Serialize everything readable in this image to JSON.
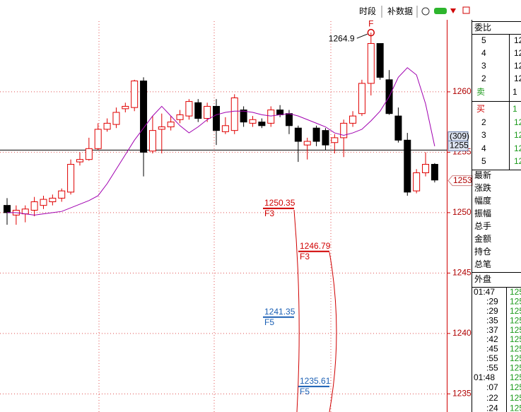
{
  "toolbar": {
    "period": "时段",
    "fill_data": "补数据"
  },
  "chart_data": {
    "type": "candlestick",
    "open": [
      1250.6,
      1249.8,
      1249.9,
      1250.2,
      1250.6,
      1250.9,
      1251.2,
      1251.7,
      1254.2,
      1254.4,
      1255.3,
      1256.9,
      1257.3,
      1258.6,
      1258.7,
      1260.9,
      1255.1,
      1256.9,
      1257.1,
      1257.7,
      1258.0,
      1259.1,
      1257.8,
      1258.8,
      1256.7,
      1256.8,
      1258.5,
      1257.4,
      1257.5,
      1257.4,
      1258.5,
      1258.2,
      1257.0,
      1255.6,
      1257.0,
      1256.8,
      1255.8,
      1256.2,
      1257.4,
      1258.2,
      1260.7,
      1264.0,
      1261.0,
      1258.0,
      1256.0,
      1251.8,
      1253.3,
      1254.0
    ],
    "high": [
      1251.2,
      1250.6,
      1250.6,
      1251.3,
      1251.4,
      1251.5,
      1252.0,
      1254.4,
      1255.0,
      1256.2,
      1257.4,
      1257.8,
      1258.7,
      1259.1,
      1261.0,
      1261.2,
      1258.0,
      1258.2,
      1258.0,
      1258.5,
      1259.4,
      1259.4,
      1259.1,
      1259.4,
      1257.9,
      1259.8,
      1258.8,
      1258.0,
      1257.8,
      1258.8,
      1258.9,
      1258.5,
      1257.2,
      1256.2,
      1257.2,
      1257.0,
      1256.5,
      1257.7,
      1258.4,
      1261.0,
      1264.9,
      1264.0,
      1261.8,
      1258.7,
      1256.6,
      1253.6,
      1255.0,
      1254.1
    ],
    "low": [
      1249.0,
      1249.0,
      1249.2,
      1249.7,
      1250.3,
      1250.6,
      1250.9,
      1251.5,
      1253.9,
      1254.3,
      1255.2,
      1256.7,
      1257.0,
      1258.3,
      1258.4,
      1253.0,
      1254.9,
      1254.9,
      1256.8,
      1257.4,
      1257.7,
      1257.5,
      1257.5,
      1255.6,
      1256.5,
      1256.5,
      1257.1,
      1257.1,
      1257.0,
      1257.1,
      1257.9,
      1256.5,
      1254.2,
      1254.4,
      1255.5,
      1255.2,
      1254.9,
      1254.6,
      1257.1,
      1258.0,
      1259.7,
      1261.0,
      1258.1,
      1255.8,
      1251.4,
      1251.6,
      1253.0,
      1252.5
    ],
    "close": [
      1250.0,
      1250.2,
      1250.3,
      1250.9,
      1251.1,
      1251.2,
      1251.8,
      1254.0,
      1254.4,
      1255.3,
      1256.9,
      1257.4,
      1258.3,
      1258.8,
      1260.9,
      1255.0,
      1256.8,
      1257.1,
      1257.5,
      1258.1,
      1259.2,
      1257.8,
      1258.8,
      1256.8,
      1257.2,
      1259.5,
      1257.5,
      1257.7,
      1257.2,
      1258.5,
      1258.1,
      1257.2,
      1255.9,
      1255.9,
      1255.9,
      1255.6,
      1256.2,
      1257.4,
      1258.0,
      1260.7,
      1264.0,
      1261.2,
      1258.2,
      1256.0,
      1251.7,
      1253.3,
      1254.0,
      1252.7
    ],
    "up_color": "#e00000",
    "down_color": "#000000",
    "ma": {
      "color": "#a000b0",
      "values": [
        1250.0,
        1250.0,
        1249.9,
        1249.8,
        1249.9,
        1250.0,
        1250.1,
        1250.4,
        1250.7,
        1251.0,
        1251.4,
        1252.4,
        1253.6,
        1254.8,
        1256.0,
        1257.0,
        1258.0,
        1258.8,
        1258.0,
        1257.2,
        1256.6,
        1257.1,
        1257.7,
        1258.1,
        1258.3,
        1258.4,
        1258.4,
        1258.3,
        1258.1,
        1258.0,
        1258.1,
        1258.2,
        1258.0,
        1257.7,
        1257.4,
        1257.1,
        1256.6,
        1256.4,
        1256.6,
        1256.9,
        1257.6,
        1258.4,
        1259.6,
        1261.2,
        1262.0,
        1261.4,
        1259.0,
        1255.5
      ]
    },
    "ylim": [
      1233.5,
      1267.6
    ],
    "yticks": [
      1260,
      1255,
      1250,
      1245,
      1240,
      1235
    ],
    "grid": true,
    "high_marker": "F",
    "high_label": "1264.9",
    "fibs": [
      {
        "value": 1250.35,
        "tag": "F3",
        "color": "#d00000"
      },
      {
        "value": 1246.79,
        "tag": "F3",
        "color": "#d00000"
      },
      {
        "value": 1241.35,
        "tag": "F5",
        "color": "#1a5fb4"
      },
      {
        "value": 1235.61,
        "tag": "F5",
        "color": "#1a5fb4"
      }
    ],
    "last_line": {
      "value": 1255,
      "count": "(309)"
    },
    "current_price": 1253
  },
  "order_book": {
    "title": "委比",
    "rows": [
      [
        "5",
        "12"
      ],
      [
        "4",
        "12"
      ],
      [
        "3",
        "12"
      ],
      [
        "2",
        "12"
      ],
      [
        "卖",
        "1"
      ],
      [
        "买",
        "1"
      ],
      [
        "2",
        "12"
      ],
      [
        "3",
        "12"
      ],
      [
        "4",
        "12"
      ],
      [
        "5",
        "12"
      ]
    ]
  },
  "quote_labels": [
    "最新",
    "涨跌",
    "幅度",
    "振幅",
    "总手",
    "金额",
    "持仓",
    "总笔"
  ],
  "outer": "外盘",
  "trades": [
    [
      "01:47",
      "125"
    ],
    [
      ":29",
      "125"
    ],
    [
      ":29",
      "125"
    ],
    [
      ":35",
      "125"
    ],
    [
      ":37",
      "125"
    ],
    [
      ":42",
      "125"
    ],
    [
      ":45",
      "125"
    ],
    [
      ":55",
      "125"
    ],
    [
      ":55",
      "125"
    ],
    [
      "01:48",
      "125"
    ],
    [
      ":07",
      "125"
    ],
    [
      ":22",
      "125"
    ],
    [
      ":24",
      "125"
    ]
  ]
}
